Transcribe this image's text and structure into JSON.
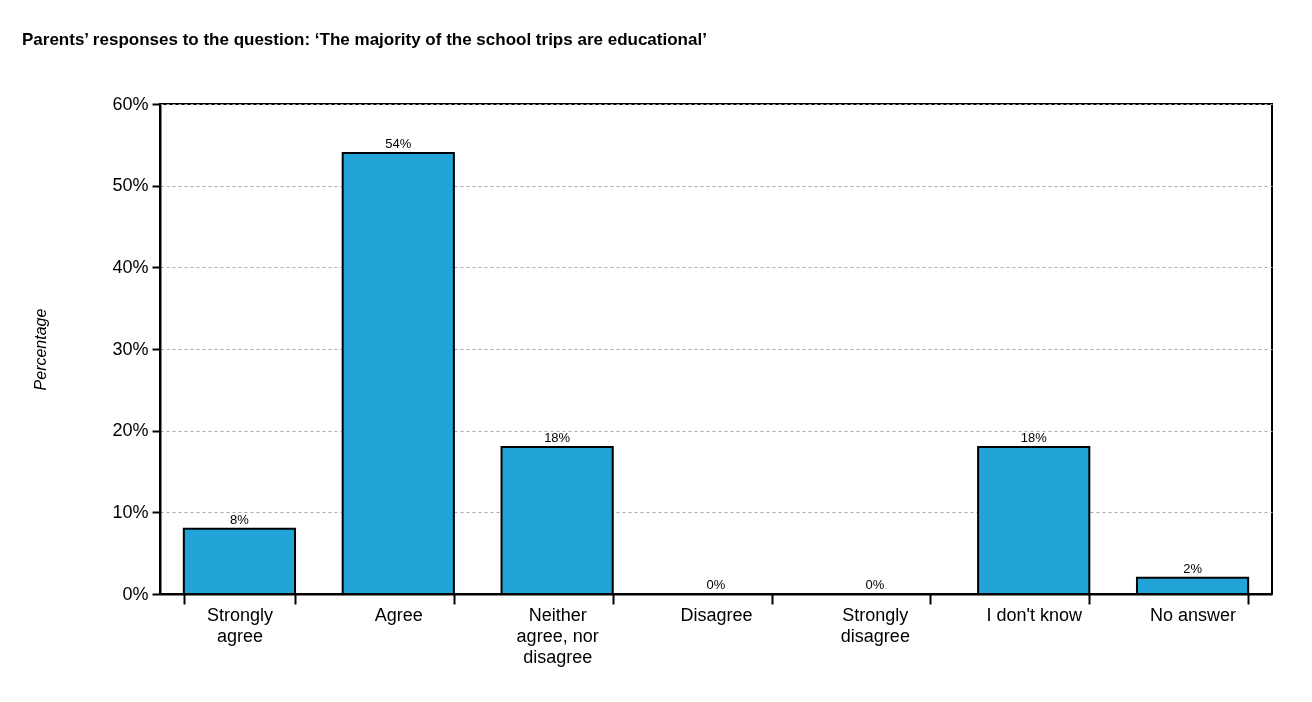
{
  "chart_data": {
    "type": "bar",
    "title": "Parents’ responses to the question: ‘The majority of the school trips are educational’",
    "ylabel": "Percentage",
    "categories": [
      "Strongly agree",
      "Agree",
      "Neither agree, nor disagree",
      "Disagree",
      "Strongly disagree",
      "I don't know",
      "No answer"
    ],
    "values": [
      8,
      54,
      18,
      0,
      0,
      18,
      2
    ],
    "value_labels": [
      "8%",
      "54%",
      "18%",
      "0%",
      "0%",
      "18%",
      "2%"
    ],
    "color": "#22a4d8",
    "ylim": [
      0,
      60
    ],
    "yticks": [
      {
        "value": 0,
        "label": "0%"
      },
      {
        "value": 10,
        "label": "10%"
      },
      {
        "value": 20,
        "label": "20%"
      },
      {
        "value": 30,
        "label": "30%"
      },
      {
        "value": 40,
        "label": "40%"
      },
      {
        "value": 50,
        "label": "50%"
      },
      {
        "value": 60,
        "label": "60%"
      }
    ],
    "grid": "y"
  }
}
